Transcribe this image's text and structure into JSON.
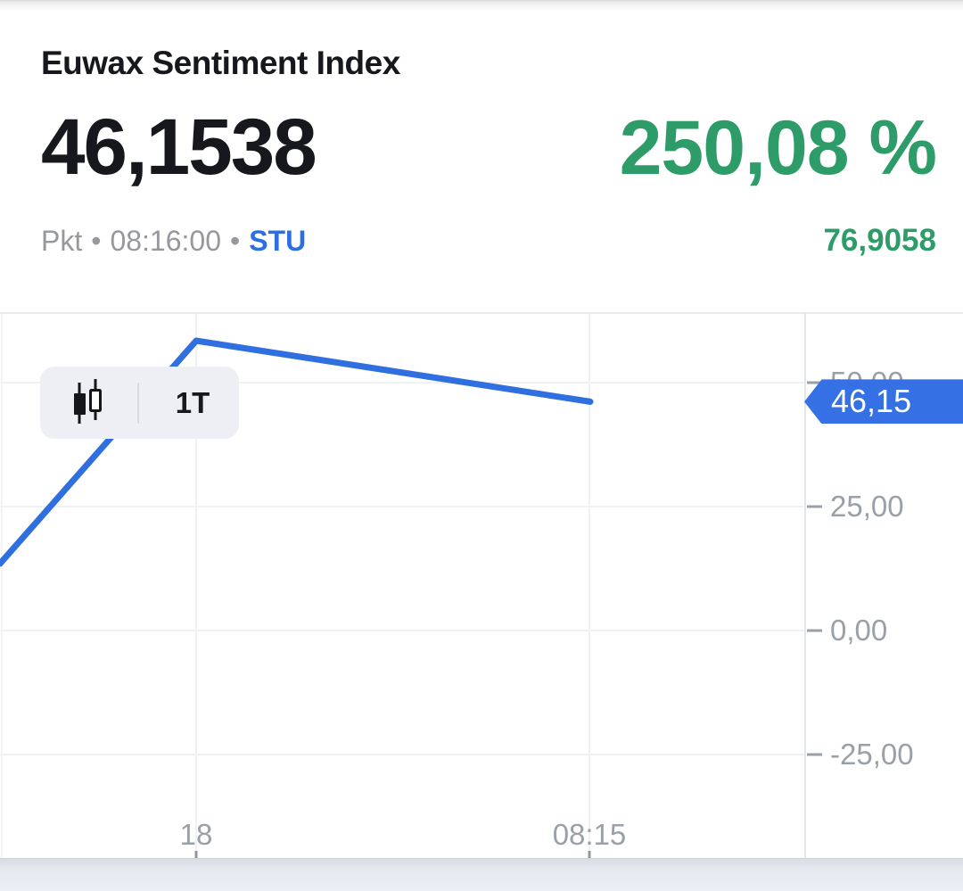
{
  "header": {
    "title": "Euwax Sentiment Index",
    "last_price": "46,1538",
    "change_percent": "250,08 %",
    "meta": {
      "unit": "Pkt",
      "separator": "•",
      "time": "08:16:00",
      "exchange": "STU"
    },
    "reference_value": "76,9058"
  },
  "toolbar": {
    "chart_type_icon": "candlestick-icon",
    "interval_label": "1T"
  },
  "chart_data": {
    "type": "line",
    "name": "Euwax Sentiment Index",
    "unit": "Pkt",
    "x_tick_labels": [
      "18",
      "08:15"
    ],
    "y_tick_labels": [
      "50,00",
      "25,00",
      "0,00",
      "-25,00"
    ],
    "y_tick_values": [
      50,
      25,
      0,
      -25
    ],
    "ylim": [
      -46,
      64
    ],
    "grid": true,
    "legend": false,
    "series": [
      {
        "name": "Euwax Sentiment Index",
        "values": [
          13.5,
          58.45,
          46.1538
        ]
      }
    ],
    "last_value": 46.1538,
    "last_value_label": "46,15"
  },
  "colors": {
    "positive_green": "#2e9c69",
    "accent_blue": "#2c6fe0",
    "line_blue": "#2f6fe0",
    "badge_blue": "#3571e5",
    "axis_label_gray": "#9aa0a8",
    "meta_gray": "#96989d"
  }
}
